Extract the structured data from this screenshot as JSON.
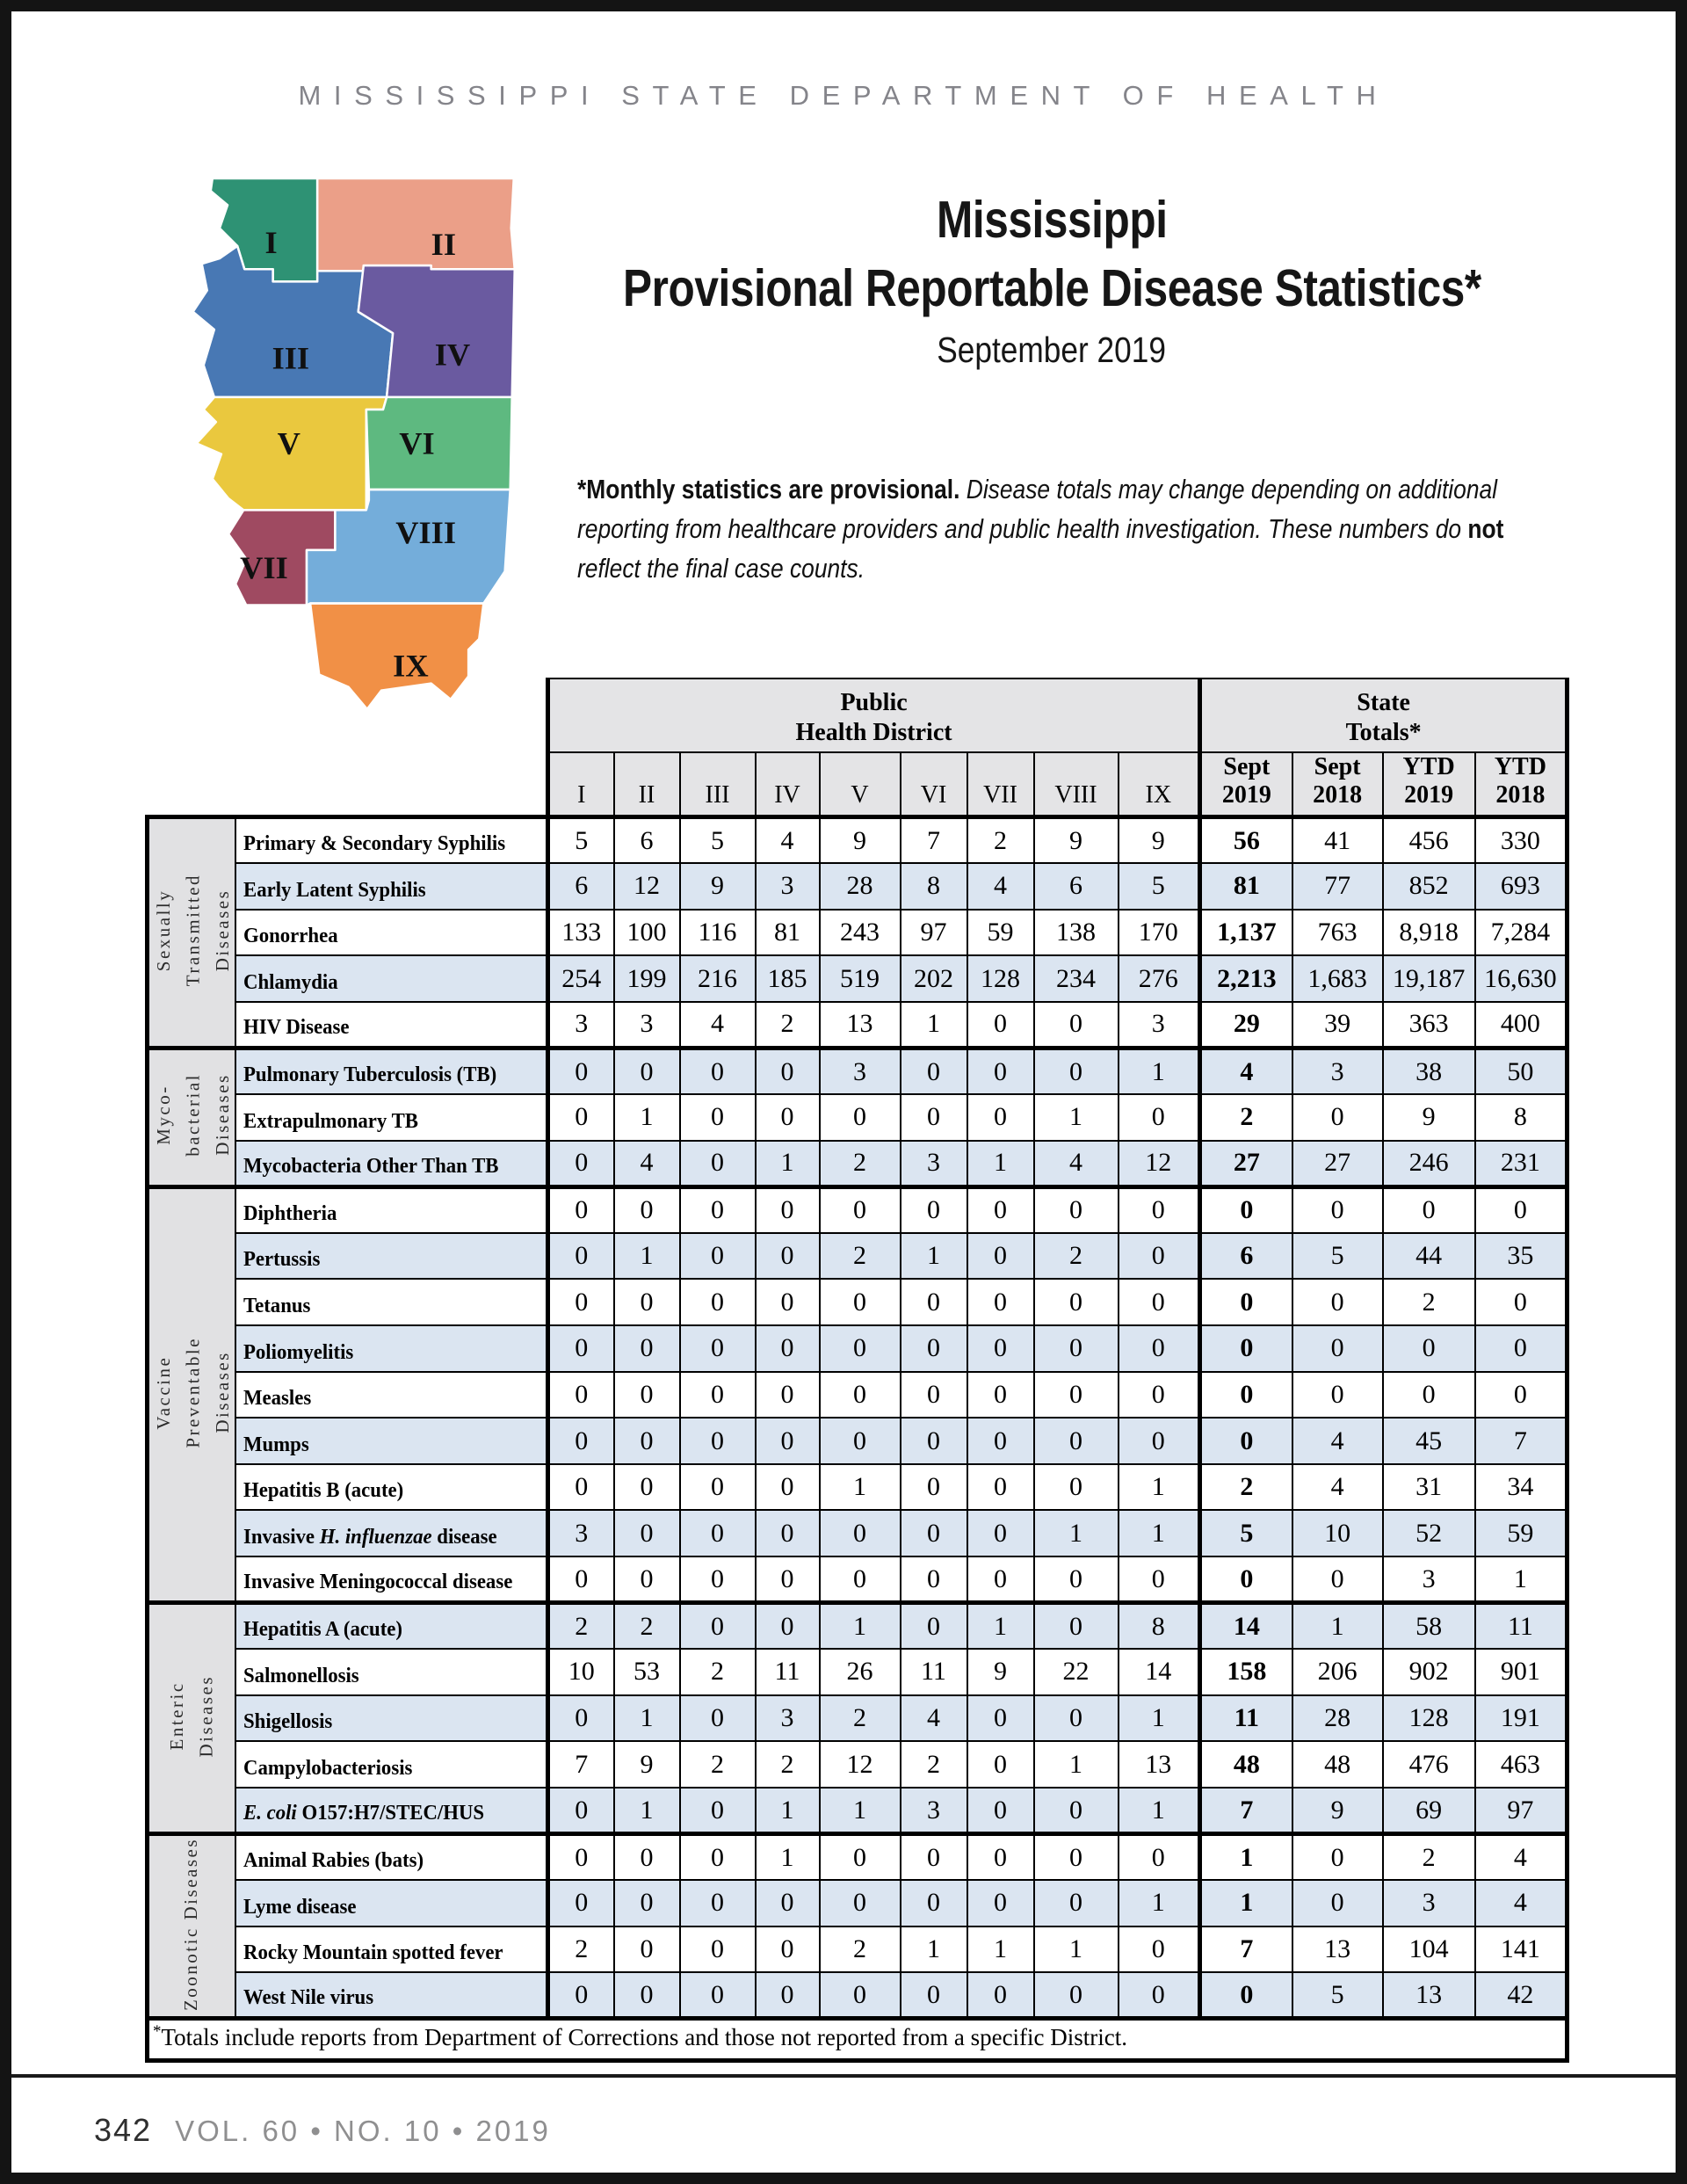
{
  "masthead": "MISSISSIPPI STATE DEPARTMENT OF HEALTH",
  "title": {
    "line1": "Mississippi",
    "line2": "Provisional Reportable Disease Statistics*",
    "subtitle": "September 2019"
  },
  "note": {
    "segments": [
      {
        "text": "*Monthly statistics are provisional.",
        "bold": true,
        "italic": false
      },
      {
        "text": " Disease totals may change depending on additional reporting from healthcare providers and public health investigation. These numbers do ",
        "bold": false,
        "italic": true
      },
      {
        "text": "not",
        "bold": true,
        "italic": false
      },
      {
        "text": " reflect the final case counts.",
        "bold": false,
        "italic": true
      }
    ]
  },
  "map": {
    "districts": [
      {
        "numeral": "I",
        "color": "#2E9274"
      },
      {
        "numeral": "II",
        "color": "#EB9F88"
      },
      {
        "numeral": "III",
        "color": "#4878B4"
      },
      {
        "numeral": "IV",
        "color": "#6A5AA0"
      },
      {
        "numeral": "V",
        "color": "#EAC83E"
      },
      {
        "numeral": "VI",
        "color": "#5EB980"
      },
      {
        "numeral": "VII",
        "color": "#9F4A61"
      },
      {
        "numeral": "VIII",
        "color": "#74ADDA"
      },
      {
        "numeral": "IX",
        "color": "#F19046"
      }
    ]
  },
  "table": {
    "phd_header": "Public\nHealth District",
    "state_header": "State\nTotals*",
    "columns": [
      "I",
      "II",
      "III",
      "IV",
      "V",
      "VI",
      "VII",
      "VIII",
      "IX",
      "Sept\n2019",
      "Sept\n2018",
      "YTD\n2019",
      "YTD\n2018"
    ],
    "sections": [
      {
        "label": "Sexually\nTransmitted\nDiseases",
        "rows": [
          {
            "name": "Primary & Secondary Syphilis",
            "values": [
              "5",
              "6",
              "5",
              "4",
              "9",
              "7",
              "2",
              "9",
              "9",
              "56",
              "41",
              "456",
              "330"
            ]
          },
          {
            "name": "Early Latent Syphilis",
            "values": [
              "6",
              "12",
              "9",
              "3",
              "28",
              "8",
              "4",
              "6",
              "5",
              "81",
              "77",
              "852",
              "693"
            ]
          },
          {
            "name": "Gonorrhea",
            "values": [
              "133",
              "100",
              "116",
              "81",
              "243",
              "97",
              "59",
              "138",
              "170",
              "1,137",
              "763",
              "8,918",
              "7,284"
            ]
          },
          {
            "name": "Chlamydia",
            "values": [
              "254",
              "199",
              "216",
              "185",
              "519",
              "202",
              "128",
              "234",
              "276",
              "2,213",
              "1,683",
              "19,187",
              "16,630"
            ]
          },
          {
            "name": "HIV Disease",
            "values": [
              "3",
              "3",
              "4",
              "2",
              "13",
              "1",
              "0",
              "0",
              "3",
              "29",
              "39",
              "363",
              "400"
            ]
          }
        ]
      },
      {
        "label": "Myco-\nbacterial\nDiseases",
        "rows": [
          {
            "name": "Pulmonary Tuberculosis (TB)",
            "values": [
              "0",
              "0",
              "0",
              "0",
              "3",
              "0",
              "0",
              "0",
              "1",
              "4",
              "3",
              "38",
              "50"
            ]
          },
          {
            "name": "Extrapulmonary TB",
            "values": [
              "0",
              "1",
              "0",
              "0",
              "0",
              "0",
              "0",
              "1",
              "0",
              "2",
              "0",
              "9",
              "8"
            ]
          },
          {
            "name": "Mycobacteria Other Than TB",
            "values": [
              "0",
              "4",
              "0",
              "1",
              "2",
              "3",
              "1",
              "4",
              "12",
              "27",
              "27",
              "246",
              "231"
            ]
          }
        ]
      },
      {
        "label": "Vaccine\nPreventable\nDiseases",
        "rows": [
          {
            "name": "Diphtheria",
            "values": [
              "0",
              "0",
              "0",
              "0",
              "0",
              "0",
              "0",
              "0",
              "0",
              "0",
              "0",
              "0",
              "0"
            ]
          },
          {
            "name": "Pertussis",
            "values": [
              "0",
              "1",
              "0",
              "0",
              "2",
              "1",
              "0",
              "2",
              "0",
              "6",
              "5",
              "44",
              "35"
            ]
          },
          {
            "name": "Tetanus",
            "values": [
              "0",
              "0",
              "0",
              "0",
              "0",
              "0",
              "0",
              "0",
              "0",
              "0",
              "0",
              "2",
              "0"
            ]
          },
          {
            "name": "Poliomyelitis",
            "values": [
              "0",
              "0",
              "0",
              "0",
              "0",
              "0",
              "0",
              "0",
              "0",
              "0",
              "0",
              "0",
              "0"
            ]
          },
          {
            "name": "Measles",
            "values": [
              "0",
              "0",
              "0",
              "0",
              "0",
              "0",
              "0",
              "0",
              "0",
              "0",
              "0",
              "0",
              "0"
            ]
          },
          {
            "name": "Mumps",
            "values": [
              "0",
              "0",
              "0",
              "0",
              "0",
              "0",
              "0",
              "0",
              "0",
              "0",
              "4",
              "45",
              "7"
            ]
          },
          {
            "name": "Hepatitis B (acute)",
            "values": [
              "0",
              "0",
              "0",
              "0",
              "1",
              "0",
              "0",
              "0",
              "1",
              "2",
              "4",
              "31",
              "34"
            ]
          },
          {
            "name": "Invasive H. influenzae  disease",
            "italic": "H. influenzae",
            "values": [
              "3",
              "0",
              "0",
              "0",
              "0",
              "0",
              "0",
              "1",
              "1",
              "5",
              "10",
              "52",
              "59"
            ]
          },
          {
            "name": "Invasive Meningococcal disease",
            "values": [
              "0",
              "0",
              "0",
              "0",
              "0",
              "0",
              "0",
              "0",
              "0",
              "0",
              "0",
              "3",
              "1"
            ]
          }
        ]
      },
      {
        "label": "Enteric\nDiseases",
        "rows": [
          {
            "name": "Hepatitis A (acute)",
            "values": [
              "2",
              "2",
              "0",
              "0",
              "1",
              "0",
              "1",
              "0",
              "8",
              "14",
              "1",
              "58",
              "11"
            ]
          },
          {
            "name": "Salmonellosis",
            "values": [
              "10",
              "53",
              "2",
              "11",
              "26",
              "11",
              "9",
              "22",
              "14",
              "158",
              "206",
              "902",
              "901"
            ]
          },
          {
            "name": "Shigellosis",
            "values": [
              "0",
              "1",
              "0",
              "3",
              "2",
              "4",
              "0",
              "0",
              "1",
              "11",
              "28",
              "128",
              "191"
            ]
          },
          {
            "name": "Campylobacteriosis",
            "values": [
              "7",
              "9",
              "2",
              "2",
              "12",
              "2",
              "0",
              "1",
              "13",
              "48",
              "48",
              "476",
              "463"
            ]
          },
          {
            "name": "E. coli O157:H7/STEC/HUS",
            "italic": "E. coli",
            "values": [
              "0",
              "1",
              "0",
              "1",
              "1",
              "3",
              "0",
              "0",
              "1",
              "7",
              "9",
              "69",
              "97"
            ]
          }
        ]
      },
      {
        "label": "Zoonotic Diseases",
        "rows": [
          {
            "name": "Animal Rabies (bats)",
            "values": [
              "0",
              "0",
              "0",
              "1",
              "0",
              "0",
              "0",
              "0",
              "0",
              "1",
              "0",
              "2",
              "4"
            ]
          },
          {
            "name": "Lyme disease",
            "values": [
              "0",
              "0",
              "0",
              "0",
              "0",
              "0",
              "0",
              "0",
              "1",
              "1",
              "0",
              "3",
              "4"
            ]
          },
          {
            "name": "Rocky Mountain spotted fever",
            "values": [
              "2",
              "0",
              "0",
              "0",
              "2",
              "1",
              "1",
              "1",
              "0",
              "7",
              "13",
              "104",
              "141"
            ]
          },
          {
            "name": "West Nile virus",
            "values": [
              "0",
              "0",
              "0",
              "0",
              "0",
              "0",
              "0",
              "0",
              "0",
              "0",
              "5",
              "13",
              "42"
            ]
          }
        ]
      }
    ],
    "footnote": {
      "star": "*",
      "text": "Totals include reports from Department of Corrections and those not reported from a specific District."
    }
  },
  "footer": {
    "page_number": "342",
    "issue": "VOL. 60 • NO. 10 • 2019"
  }
}
